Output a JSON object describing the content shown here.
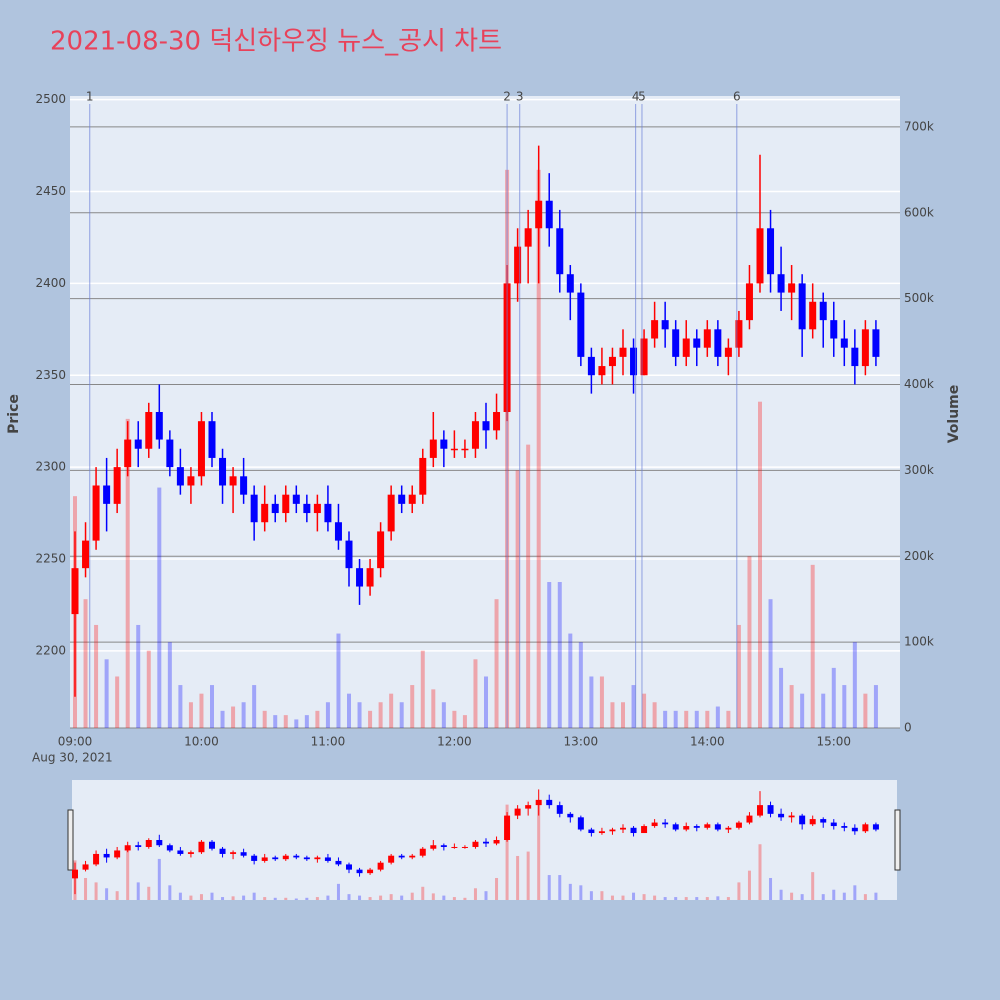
{
  "chart_data": {
    "type": "candlestick",
    "title": "2021-08-30 덕신하우징 뉴스_공시 차트",
    "yaxis_label": "Price",
    "y2axis_label": "Volume",
    "date_label": "Aug 30, 2021",
    "increasing_color": "#ff0000",
    "decreasing_color": "#0000ff",
    "x": [
      "09:00",
      "09:05",
      "09:10",
      "09:15",
      "09:20",
      "09:25",
      "09:30",
      "09:35",
      "09:40",
      "09:45",
      "09:50",
      "09:55",
      "10:00",
      "10:05",
      "10:10",
      "10:15",
      "10:20",
      "10:25",
      "10:30",
      "10:35",
      "10:40",
      "10:45",
      "10:50",
      "10:55",
      "11:00",
      "11:05",
      "11:10",
      "11:15",
      "11:20",
      "11:25",
      "11:30",
      "11:35",
      "11:40",
      "11:45",
      "11:50",
      "11:55",
      "12:00",
      "12:05",
      "12:10",
      "12:15",
      "12:20",
      "12:25",
      "12:30",
      "12:35",
      "12:40",
      "12:45",
      "12:50",
      "12:55",
      "13:00",
      "13:05",
      "13:10",
      "13:15",
      "13:20",
      "13:25",
      "13:30",
      "13:35",
      "13:40",
      "13:45",
      "13:50",
      "13:55",
      "14:00",
      "14:05",
      "14:10",
      "14:15",
      "14:20",
      "14:25",
      "14:30",
      "14:35",
      "14:40",
      "14:45",
      "14:50",
      "14:55",
      "15:00",
      "15:05",
      "15:10",
      "15:15",
      "15:20"
    ],
    "open": [
      2220,
      2245,
      2260,
      2290,
      2280,
      2300,
      2315,
      2310,
      2330,
      2315,
      2300,
      2290,
      2295,
      2325,
      2305,
      2290,
      2295,
      2285,
      2270,
      2280,
      2275,
      2285,
      2280,
      2275,
      2280,
      2270,
      2260,
      2245,
      2235,
      2245,
      2265,
      2285,
      2280,
      2285,
      2305,
      2315,
      2310,
      2310,
      2310,
      2325,
      2320,
      2330,
      2400,
      2420,
      2430,
      2445,
      2430,
      2405,
      2395,
      2360,
      2350,
      2355,
      2360,
      2365,
      2350,
      2370,
      2380,
      2375,
      2360,
      2370,
      2365,
      2375,
      2360,
      2365,
      2380,
      2400,
      2430,
      2405,
      2395,
      2400,
      2375,
      2390,
      2380,
      2370,
      2365,
      2355,
      2375
    ],
    "high": [
      2265,
      2270,
      2300,
      2305,
      2310,
      2325,
      2325,
      2335,
      2345,
      2320,
      2310,
      2300,
      2330,
      2330,
      2310,
      2300,
      2305,
      2290,
      2290,
      2285,
      2290,
      2290,
      2285,
      2285,
      2290,
      2280,
      2265,
      2250,
      2250,
      2270,
      2290,
      2290,
      2290,
      2310,
      2330,
      2320,
      2320,
      2315,
      2330,
      2335,
      2340,
      2410,
      2430,
      2440,
      2475,
      2460,
      2440,
      2410,
      2400,
      2365,
      2365,
      2365,
      2375,
      2370,
      2375,
      2390,
      2390,
      2380,
      2380,
      2375,
      2380,
      2380,
      2370,
      2385,
      2410,
      2470,
      2440,
      2420,
      2410,
      2405,
      2400,
      2395,
      2390,
      2380,
      2375,
      2380,
      2380
    ],
    "low": [
      2175,
      2240,
      2255,
      2265,
      2275,
      2295,
      2300,
      2305,
      2310,
      2295,
      2285,
      2280,
      2290,
      2300,
      2280,
      2275,
      2280,
      2260,
      2265,
      2270,
      2270,
      2275,
      2270,
      2265,
      2265,
      2255,
      2235,
      2225,
      2230,
      2240,
      2260,
      2275,
      2275,
      2280,
      2300,
      2300,
      2305,
      2305,
      2305,
      2310,
      2315,
      2325,
      2390,
      2400,
      2400,
      2420,
      2395,
      2380,
      2355,
      2340,
      2345,
      2345,
      2350,
      2340,
      2350,
      2365,
      2365,
      2355,
      2355,
      2355,
      2360,
      2355,
      2350,
      2360,
      2375,
      2395,
      2395,
      2385,
      2380,
      2360,
      2370,
      2365,
      2360,
      2355,
      2345,
      2350,
      2355
    ],
    "close": [
      2245,
      2260,
      2290,
      2280,
      2300,
      2315,
      2310,
      2330,
      2315,
      2300,
      2290,
      2295,
      2325,
      2305,
      2290,
      2295,
      2285,
      2270,
      2280,
      2275,
      2285,
      2280,
      2275,
      2280,
      2270,
      2260,
      2245,
      2235,
      2245,
      2265,
      2285,
      2280,
      2285,
      2305,
      2315,
      2310,
      2310,
      2310,
      2325,
      2320,
      2330,
      2400,
      2420,
      2430,
      2445,
      2430,
      2405,
      2395,
      2360,
      2350,
      2355,
      2360,
      2365,
      2350,
      2370,
      2380,
      2375,
      2360,
      2370,
      2365,
      2375,
      2360,
      2365,
      2380,
      2400,
      2430,
      2405,
      2395,
      2400,
      2375,
      2390,
      2380,
      2370,
      2365,
      2355,
      2375,
      2360
    ],
    "volume": [
      270000,
      150000,
      120000,
      80000,
      60000,
      360000,
      120000,
      90000,
      280000,
      100000,
      50000,
      30000,
      40000,
      50000,
      20000,
      25000,
      30000,
      50000,
      20000,
      15000,
      15000,
      10000,
      15000,
      20000,
      30000,
      110000,
      40000,
      30000,
      20000,
      30000,
      40000,
      30000,
      50000,
      90000,
      45000,
      30000,
      20000,
      15000,
      80000,
      60000,
      150000,
      650000,
      300000,
      330000,
      650000,
      170000,
      170000,
      110000,
      100000,
      60000,
      60000,
      30000,
      30000,
      50000,
      40000,
      30000,
      20000,
      20000,
      20000,
      20000,
      20000,
      25000,
      20000,
      120000,
      200000,
      380000,
      150000,
      70000,
      50000,
      40000,
      190000,
      40000,
      70000,
      50000,
      100000,
      40000,
      50000
    ],
    "ylim": [
      2158,
      2502
    ],
    "yticks": [
      2200,
      2250,
      2300,
      2350,
      2400,
      2450,
      2500
    ],
    "y2lim": [
      0,
      736000
    ],
    "y2ticks": [
      0,
      {
        "value": 100000,
        "label": "100k"
      },
      {
        "value": 200000,
        "label": "200k"
      },
      {
        "value": 300000,
        "label": "300k"
      },
      {
        "value": 400000,
        "label": "400k"
      },
      {
        "value": 500000,
        "label": "500k"
      },
      {
        "value": 600000,
        "label": "600k"
      },
      {
        "value": 700000,
        "label": "700k"
      }
    ],
    "xlim": [
      "09:00",
      "15:30"
    ],
    "xticks": [
      "09:00",
      "10:00",
      "11:00",
      "12:00",
      "13:00",
      "14:00",
      "15:00"
    ],
    "annotations": [
      {
        "label": "1",
        "x": "09:07"
      },
      {
        "label": "2",
        "x": "12:25"
      },
      {
        "label": "3",
        "x": "12:31"
      },
      {
        "label": "4",
        "x": "13:26"
      },
      {
        "label": "5",
        "x": "13:29"
      },
      {
        "label": "6",
        "x": "14:14"
      }
    ]
  }
}
